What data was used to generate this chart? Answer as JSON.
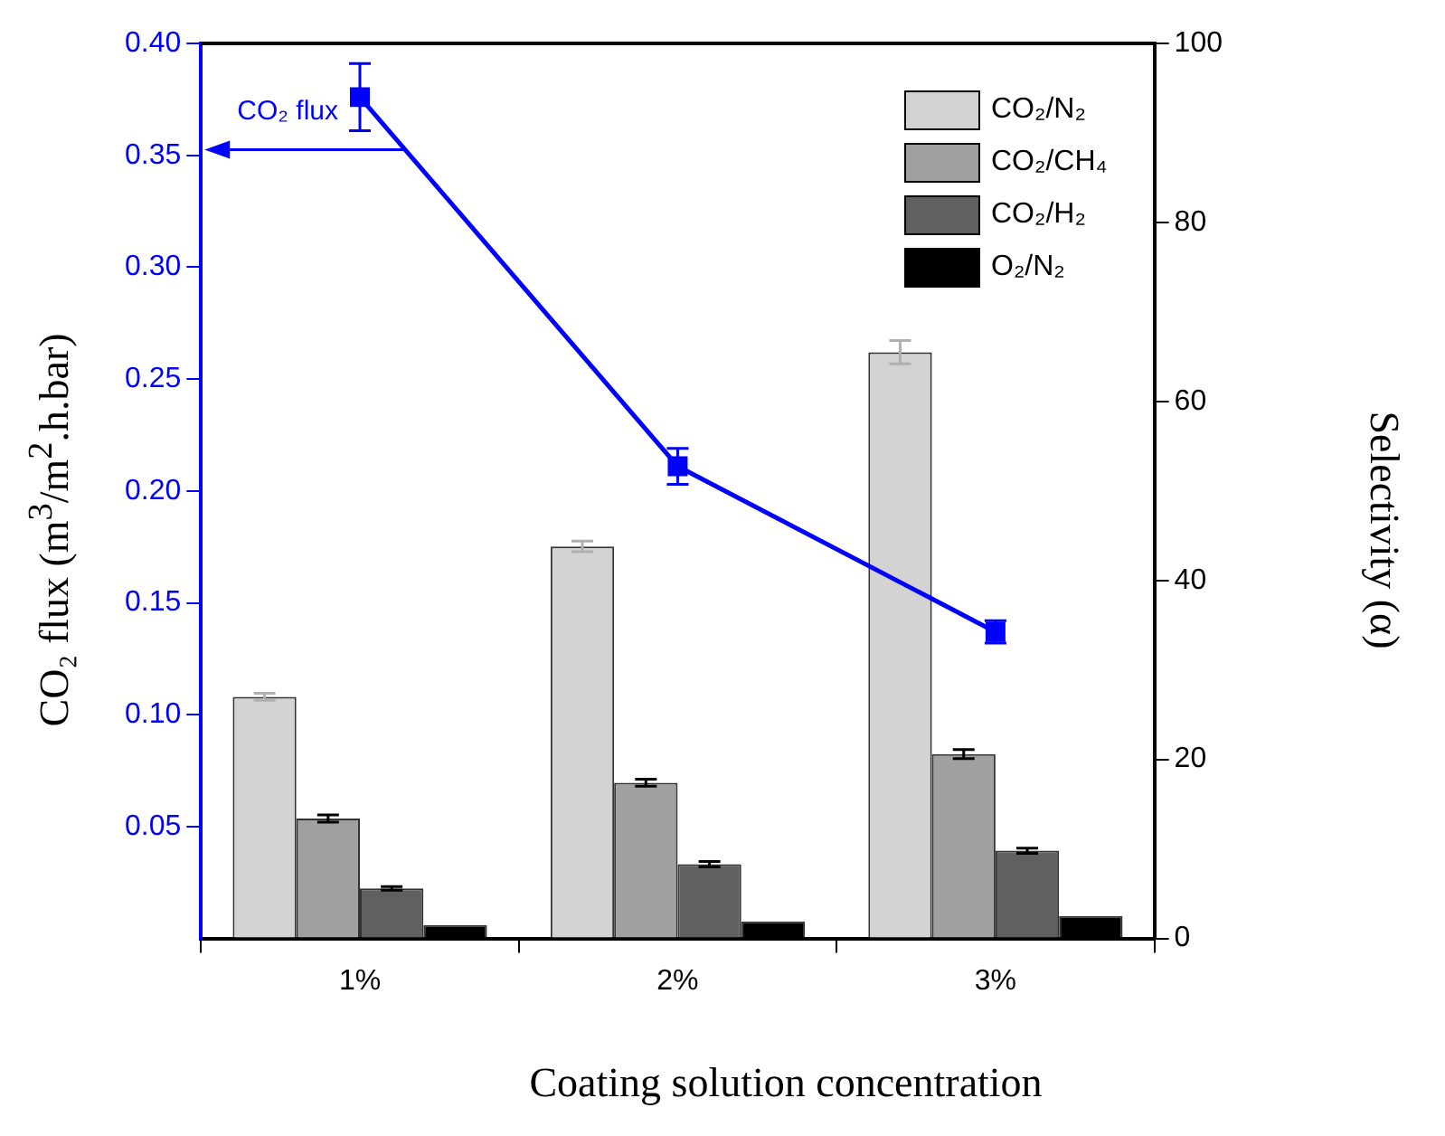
{
  "chart_data": {
    "type": "bar",
    "xlabel": "Coating solution concentration",
    "ylabel": "CO₂ flux (m$^{3}$/m$^{2}$.h.bar)",
    "y2label": "Selectivity (α)",
    "categories": [
      "1%",
      "2%",
      "3%"
    ],
    "series": [
      {
        "name": "CO₂ flux",
        "type": "line",
        "color": "#0000ff",
        "axis": "y",
        "values": [
          0.376,
          0.211,
          0.137
        ],
        "errors": [
          0.015,
          0.008,
          0.005
        ]
      },
      {
        "name": "CO₂/N₂",
        "color": "#d3d3d3",
        "axis": "y2",
        "values": [
          27.0,
          43.8,
          65.5
        ],
        "errors": [
          0.4,
          0.6,
          1.3
        ]
      },
      {
        "name": "CO₂/CH₄",
        "color": "#a0a0a0",
        "axis": "y2",
        "values": [
          13.4,
          17.4,
          20.6
        ],
        "errors": [
          0.4,
          0.4,
          0.5
        ]
      },
      {
        "name": "CO₂/H₂",
        "color": "#606060",
        "axis": "y2",
        "values": [
          5.6,
          8.3,
          9.8
        ],
        "errors": [
          0.2,
          0.3,
          0.3
        ]
      },
      {
        "name": "O₂/N₂",
        "color": "#000000",
        "axis": "y2",
        "values": [
          1.5,
          1.9,
          2.5
        ]
      }
    ],
    "ylim": [
      0,
      0.4
    ],
    "yticks": [
      0.05,
      {
        "value": 0.1,
        "label": "0.10"
      },
      0.15,
      {
        "value": 0.2,
        "label": "0.20"
      },
      0.25,
      {
        "value": 0.3,
        "label": "0.30"
      },
      0.35,
      {
        "value": 0.4,
        "label": "0.40"
      }
    ],
    "y2lim": [
      0,
      100
    ],
    "y2ticks": [
      0,
      20,
      40,
      60,
      80,
      100
    ],
    "legend": "top right",
    "grid": false,
    "marker": "square",
    "line_style": "solid"
  }
}
